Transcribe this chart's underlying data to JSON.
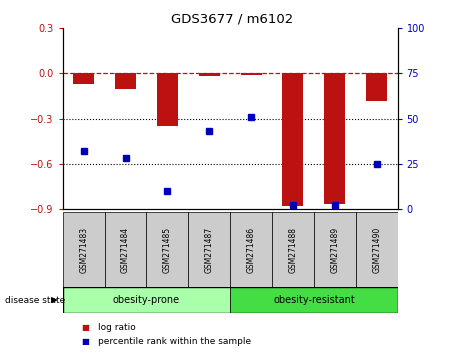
{
  "title": "GDS3677 / m6102",
  "samples": [
    "GSM271483",
    "GSM271484",
    "GSM271485",
    "GSM271487",
    "GSM271486",
    "GSM271488",
    "GSM271489",
    "GSM271490"
  ],
  "log_ratio": [
    -0.07,
    -0.1,
    -0.35,
    -0.02,
    -0.01,
    -0.88,
    -0.87,
    -0.18
  ],
  "percentile_rank": [
    32,
    28,
    10,
    43,
    51,
    2,
    2,
    25
  ],
  "groups": [
    {
      "label": "obesity-prone",
      "indices": [
        0,
        1,
        2,
        3
      ],
      "color": "#aaffaa"
    },
    {
      "label": "obesity-resistant",
      "indices": [
        4,
        5,
        6,
        7
      ],
      "color": "#44dd44"
    }
  ],
  "bar_color": "#bb1111",
  "dot_color": "#0000bb",
  "ylim_left": [
    -0.9,
    0.3
  ],
  "ylim_right": [
    0,
    100
  ],
  "yticks_left": [
    -0.9,
    -0.6,
    -0.3,
    0,
    0.3
  ],
  "yticks_right": [
    0,
    25,
    50,
    75,
    100
  ],
  "dotted_lines": [
    -0.3,
    -0.6
  ],
  "bar_width": 0.5,
  "label_gray": "#cccccc",
  "disease_state_label": "disease state",
  "legend_entries": [
    "log ratio",
    "percentile rank within the sample"
  ]
}
